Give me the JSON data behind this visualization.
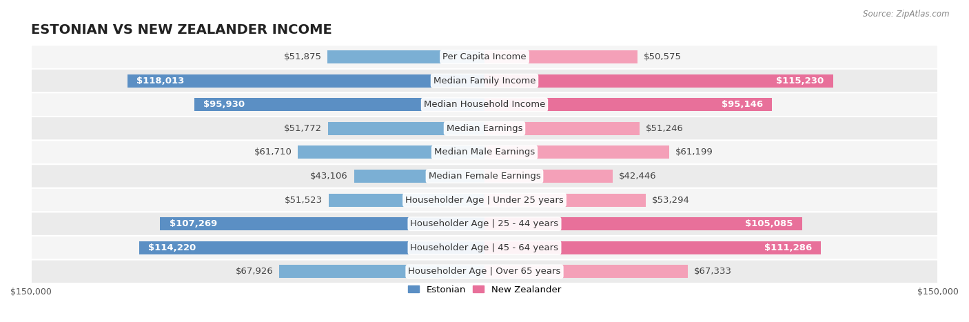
{
  "title": "ESTONIAN VS NEW ZEALANDER INCOME",
  "source": "Source: ZipAtlas.com",
  "categories": [
    "Per Capita Income",
    "Median Family Income",
    "Median Household Income",
    "Median Earnings",
    "Median Male Earnings",
    "Median Female Earnings",
    "Householder Age | Under 25 years",
    "Householder Age | 25 - 44 years",
    "Householder Age | 45 - 64 years",
    "Householder Age | Over 65 years"
  ],
  "estonian_values": [
    51875,
    118013,
    95930,
    51772,
    61710,
    43106,
    51523,
    107269,
    114220,
    67926
  ],
  "nz_values": [
    50575,
    115230,
    95146,
    51246,
    61199,
    42446,
    53294,
    105085,
    111286,
    67333
  ],
  "estonian_labels": [
    "$51,875",
    "$118,013",
    "$95,930",
    "$51,772",
    "$61,710",
    "$43,106",
    "$51,523",
    "$107,269",
    "$114,220",
    "$67,926"
  ],
  "nz_labels": [
    "$50,575",
    "$115,230",
    "$95,146",
    "$51,246",
    "$61,199",
    "$42,446",
    "$53,294",
    "$105,085",
    "$111,286",
    "$67,333"
  ],
  "estonian_color": "#7bafd4",
  "estonian_color_strong": "#5b8fc4",
  "nz_color": "#f4a0b8",
  "nz_color_strong": "#e8709a",
  "max_value": 150000,
  "bar_height": 0.55,
  "row_bg_color": "#f0f0f0",
  "row_bg_color_alt": "#e8e8e8",
  "label_fontsize": 9.5,
  "category_fontsize": 9.5,
  "title_fontsize": 14
}
